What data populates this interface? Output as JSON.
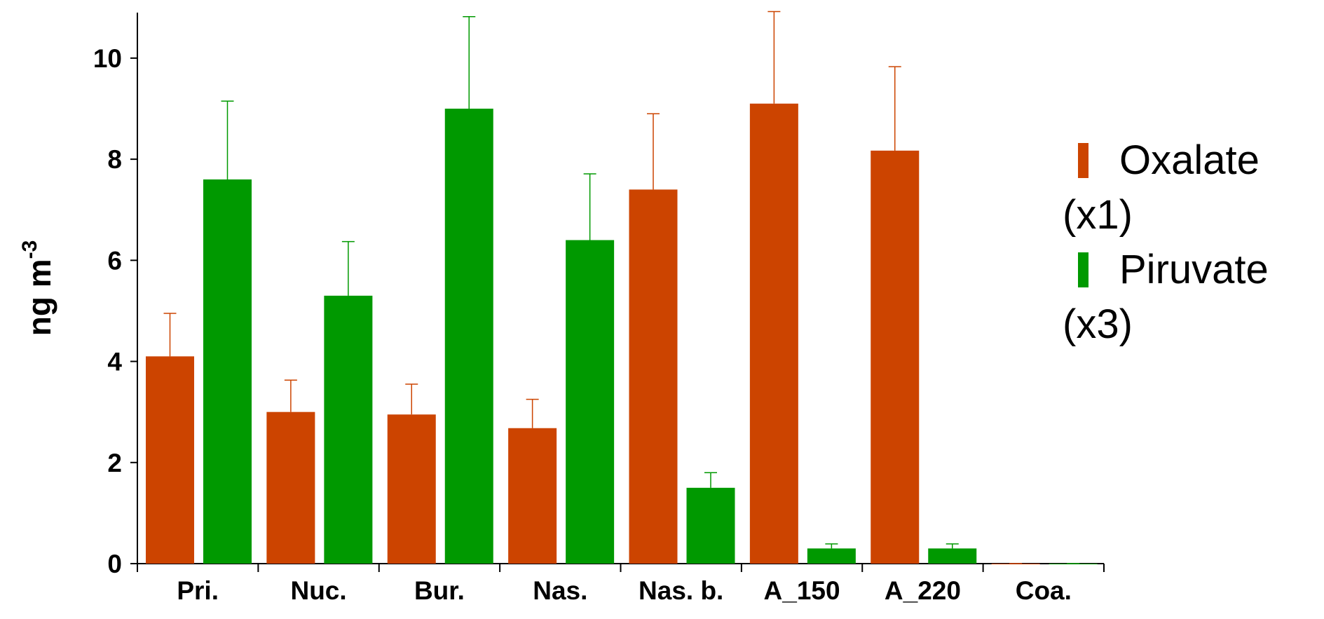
{
  "chart_data": {
    "type": "bar",
    "y_label": "ng m",
    "y_label_superscript": "-3",
    "categories": [
      "Pri.",
      "Nuc.",
      "Bur.",
      "Nas.",
      "Nas. b.",
      "A_150",
      "A_220",
      "Coa."
    ],
    "series": [
      {
        "name": "Oxalate (x1)",
        "color": "#cc4400",
        "values": [
          4.1,
          3.0,
          2.95,
          2.68,
          7.4,
          9.1,
          8.17,
          0
        ],
        "errors": [
          0.85,
          0.63,
          0.6,
          0.57,
          1.5,
          1.82,
          1.66,
          0
        ]
      },
      {
        "name": "Piruvate (x3)",
        "color": "#009900",
        "values": [
          7.6,
          5.3,
          9.0,
          6.4,
          1.5,
          0.3,
          0.3,
          0
        ],
        "errors": [
          1.55,
          1.07,
          1.82,
          1.31,
          0.3,
          0.09,
          0.09,
          0
        ]
      }
    ],
    "ylim": [
      0,
      10.9
    ],
    "yticks": [
      0,
      2,
      4,
      6,
      8,
      10
    ]
  }
}
